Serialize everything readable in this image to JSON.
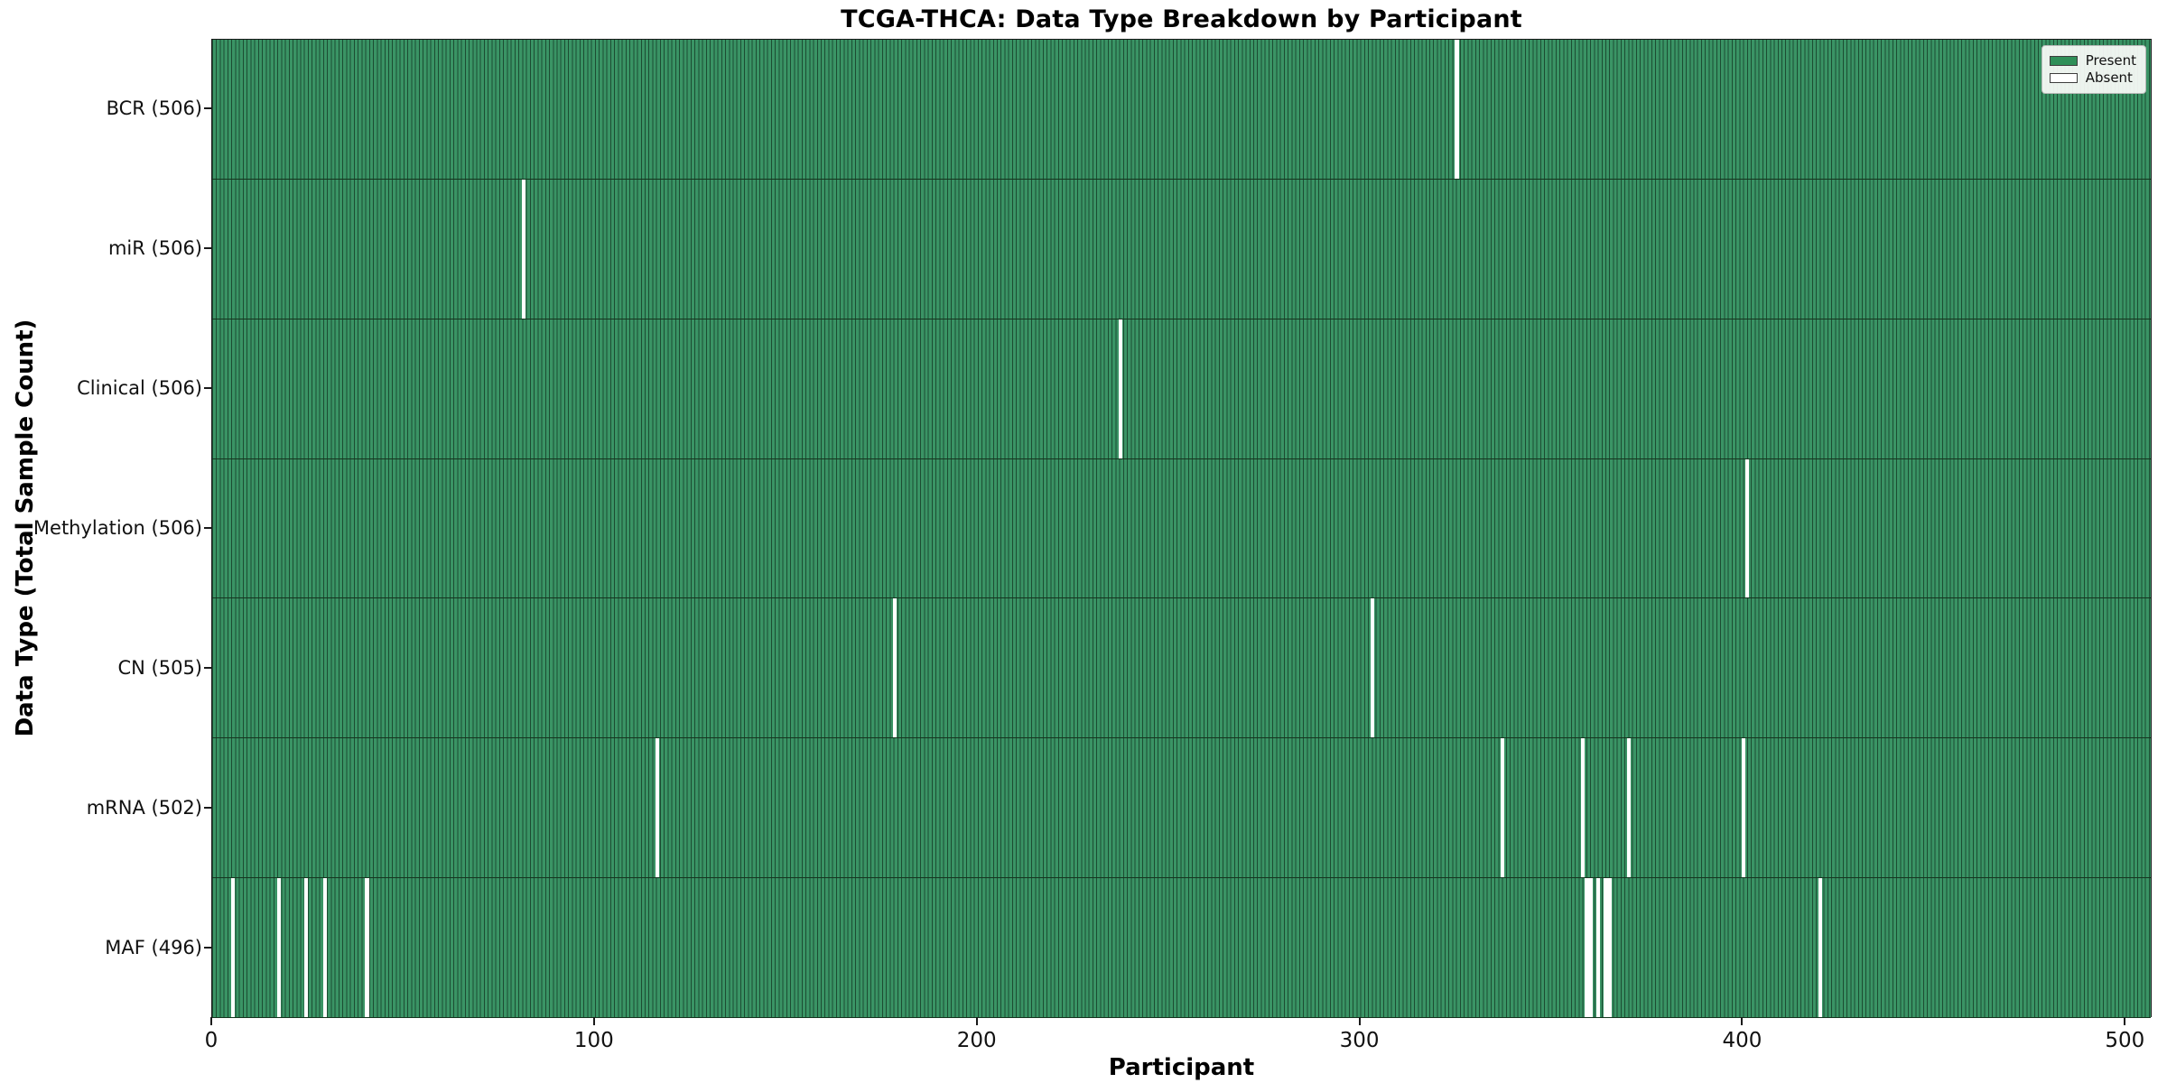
{
  "colors": {
    "present_fill": "#3a9465",
    "bar_edge": "#1c4c32",
    "absent_fill": "#ffffff",
    "row_divider": "#15351f",
    "axis": "#1a1a1a",
    "legend_present_swatch": "#2f8f58",
    "legend_absent_swatch": "#ffffff"
  },
  "chart_data": {
    "type": "heatmap",
    "title": "TCGA-THCA: Data Type Breakdown by Participant",
    "xlabel": "Participant",
    "ylabel": "Data Type (Total Sample Count)",
    "x_ticks": [
      0,
      100,
      200,
      300,
      400,
      500
    ],
    "x_range": [
      0,
      507
    ],
    "n_participants": 507,
    "grid": false,
    "legend_position": "upper right",
    "legend": [
      {
        "label": "Present",
        "color": "#2f8f58"
      },
      {
        "label": "Absent",
        "color": "#ffffff"
      }
    ],
    "rows": [
      {
        "label": "BCR (506)",
        "data_type": "BCR",
        "present_count": 506,
        "absent_count": 1,
        "absent_participants": [
          325
        ]
      },
      {
        "label": "miR (506)",
        "data_type": "miR",
        "present_count": 506,
        "absent_count": 1,
        "absent_participants": [
          81
        ]
      },
      {
        "label": "Clinical (506)",
        "data_type": "Clinical",
        "present_count": 506,
        "absent_count": 1,
        "absent_participants": [
          237
        ]
      },
      {
        "label": "Methylation (506)",
        "data_type": "Methylation",
        "present_count": 506,
        "absent_count": 1,
        "absent_participants": [
          401
        ]
      },
      {
        "label": "CN (505)",
        "data_type": "CN",
        "present_count": 505,
        "absent_count": 2,
        "absent_participants": [
          178,
          303
        ]
      },
      {
        "label": "mRNA (502)",
        "data_type": "mRNA",
        "present_count": 502,
        "absent_count": 5,
        "absent_participants": [
          116,
          337,
          358,
          370,
          400
        ]
      },
      {
        "label": "MAF (496)",
        "data_type": "MAF",
        "present_count": 496,
        "absent_count": 11,
        "absent_participants": [
          5,
          17,
          24,
          29,
          40,
          359,
          360,
          362,
          364,
          365,
          420
        ]
      }
    ]
  }
}
